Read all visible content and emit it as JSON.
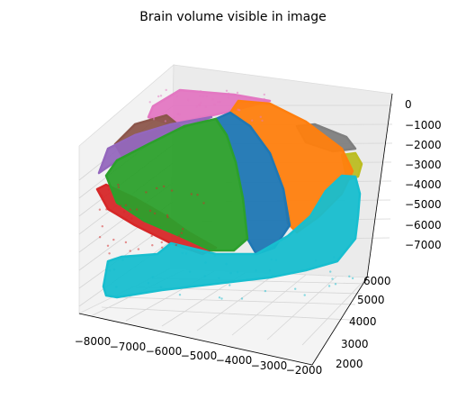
{
  "chart_data": {
    "type": "scatter",
    "projection": "3d",
    "title": "Brain volume visible in image",
    "x_axis": {
      "label": "",
      "ticks": [
        "−8000",
        "−7000",
        "−6000",
        "−5000",
        "−4000",
        "−3000",
        "−2000"
      ]
    },
    "y_axis": {
      "label": "",
      "ticks": [
        "2000",
        "3000",
        "4000",
        "5000",
        "6000"
      ]
    },
    "z_axis": {
      "label": "",
      "ticks": [
        "0",
        "−1000",
        "−2000",
        "−3000",
        "−4000",
        "−5000",
        "−6000",
        "−7000"
      ]
    },
    "grid": true,
    "legend": "none",
    "series": [
      {
        "color": "#e377c2"
      },
      {
        "color": "#8c564b"
      },
      {
        "color": "#9467bd"
      },
      {
        "color": "#7f7f7f"
      },
      {
        "color": "#bcbd22"
      },
      {
        "color": "#d62728"
      },
      {
        "color": "#ff7f0e"
      },
      {
        "color": "#1f77b4"
      },
      {
        "color": "#2ca02c"
      },
      {
        "color": "#17becf"
      }
    ]
  }
}
